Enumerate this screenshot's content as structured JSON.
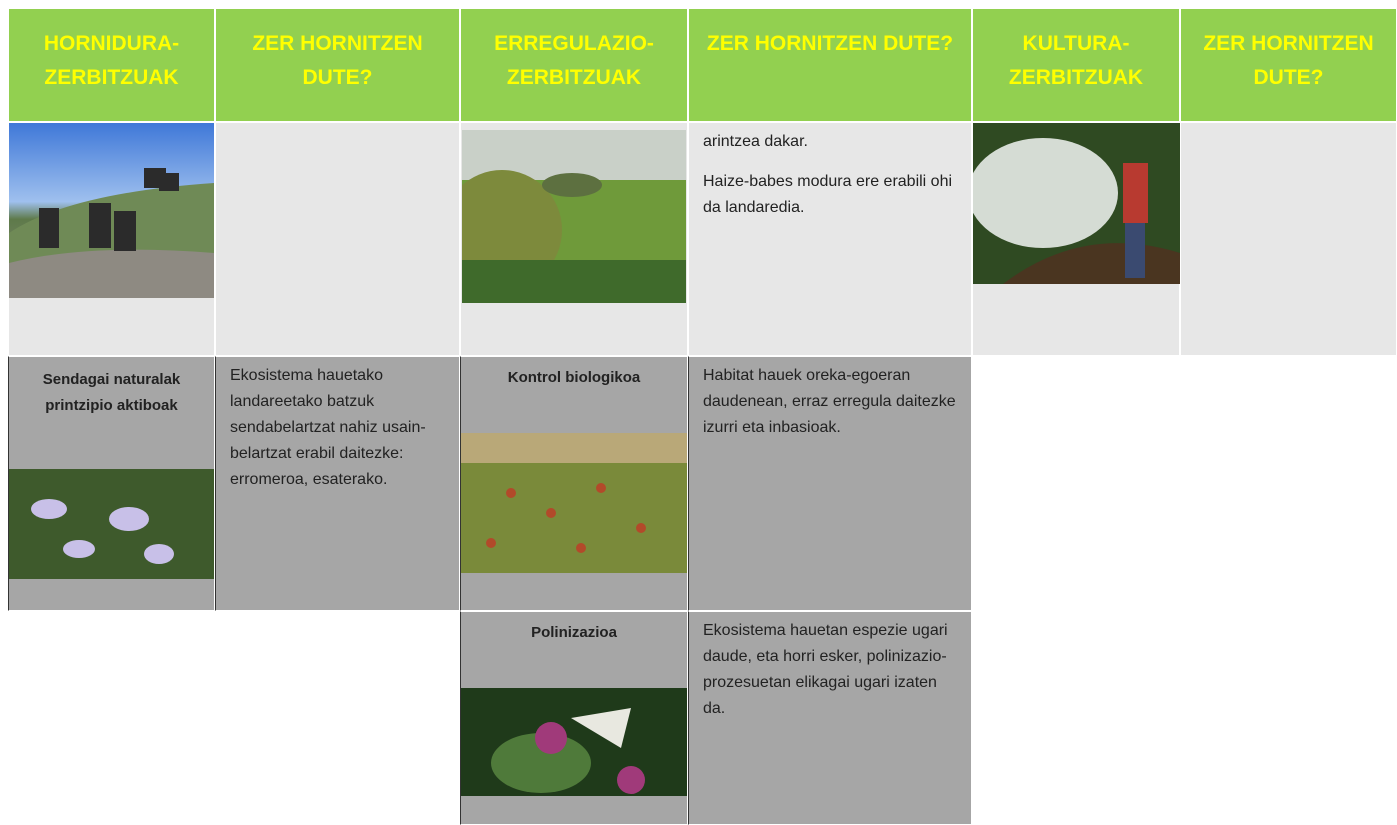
{
  "table": {
    "headers": [
      "HORNIDURA-ZERBITZUAK",
      "ZER HORNITZEN DUTE?",
      "ERREGULAZIO-ZERBITZUAK",
      "ZER HORNITZEN DUTE?",
      "KULTURA-ZERBITZUAK",
      "ZER HORNITZEN DUTE?"
    ],
    "rows": [
      {
        "regulation_text": [
          "arintzea dakar.",
          "Haize-babes modura ere erabili ohi da landaredia."
        ]
      },
      {
        "provision_title": "Sendagai naturalak printzipio aktiboak",
        "provision_text": "Ekosistema hauetako landareetako batzuk sendabelartzat nahiz usain-belartzat erabil daitezke: erromeroa, esaterako.",
        "regulation_title": "Kontrol biologikoa",
        "regulation_text": "Habitat hauek oreka-egoeran daudenean, erraz erregula daitezke izurri eta inbasioak."
      },
      {
        "regulation_title": "Polinizazioa",
        "regulation_text": "Ekosistema hauetan espezie ugari daude, eta horri esker, polinizazio-prozesuetan elikagai ugari izaten da."
      }
    ]
  }
}
